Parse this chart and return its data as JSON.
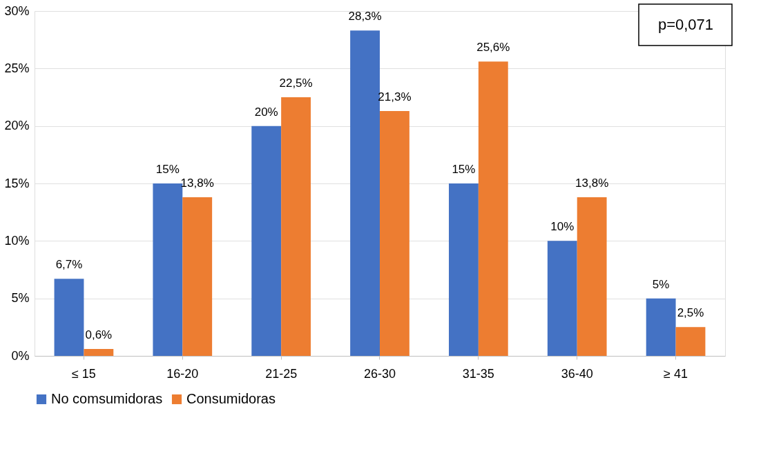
{
  "chart_data": {
    "type": "bar",
    "categories": [
      "≤ 15",
      "16-20",
      "21-25",
      "26-30",
      "31-35",
      "36-40",
      "≥ 41"
    ],
    "series": [
      {
        "name": "No comsumidoras",
        "color": "#4472c4",
        "values": [
          6.7,
          15,
          20,
          28.3,
          15,
          10,
          5
        ],
        "value_labels": [
          "6,7%",
          "15%",
          "20%",
          "28,3%",
          "15%",
          "10%",
          "5%"
        ]
      },
      {
        "name": "Consumidoras",
        "color": "#ed7d31",
        "values": [
          0.6,
          13.8,
          22.5,
          21.3,
          25.6,
          13.8,
          2.5
        ],
        "value_labels": [
          "0,6%",
          "13,8%",
          "22,5%",
          "21,3%",
          "25,6%",
          "13,8%",
          "2,5%"
        ]
      }
    ],
    "ylim": [
      0,
      30
    ],
    "yticks": [
      {
        "value": 0,
        "label": "0%"
      },
      {
        "value": 5,
        "label": "5%"
      },
      {
        "value": 10,
        "label": "10%"
      },
      {
        "value": 15,
        "label": "15%"
      },
      {
        "value": 20,
        "label": "20%"
      },
      {
        "value": 25,
        "label": "25%"
      },
      {
        "value": 30,
        "label": "30%"
      }
    ],
    "grid": "y",
    "legend": "bottom",
    "annotations": [
      "p=0,071"
    ]
  }
}
